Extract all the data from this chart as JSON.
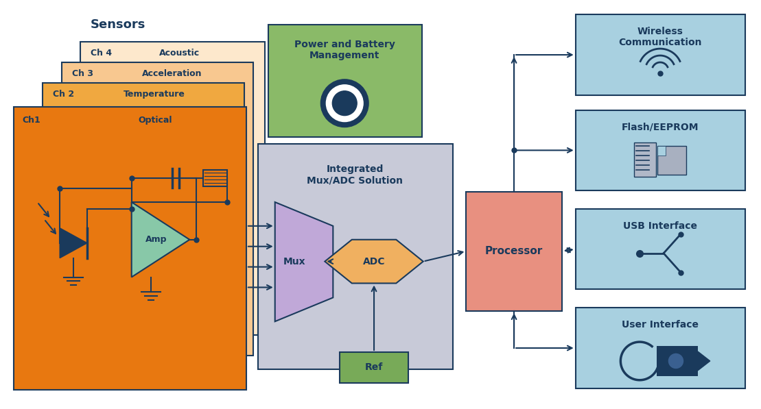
{
  "bg_color": "#ffffff",
  "dark_blue": "#1a3a5c",
  "ch4_color": "#fde8cc",
  "ch3_color": "#f8c890",
  "ch2_color": "#f0a840",
  "ch1_color": "#e87810",
  "green_pbm": "#8aba68",
  "gray_mux": "#c8cad8",
  "purple_mux": "#c0a8d8",
  "adc_orange": "#f0b060",
  "processor_pink": "#e89080",
  "light_blue": "#a8d0e0",
  "ref_green": "#78aa58",
  "amp_green": "#88c8a8",
  "sensors_label": "Sensors",
  "amp_label": "Amp",
  "mux_label": "Mux",
  "adc_label": "ADC",
  "ref_label": "Ref",
  "processor_label": "Processor",
  "power_label": "Power and Battery\nManagement",
  "integrated_label": "Integrated\nMux/ADC Solution",
  "outputs": [
    "Wireless\nCommunication",
    "Flash/EEPROM",
    "USB Interface",
    "User Interface"
  ]
}
